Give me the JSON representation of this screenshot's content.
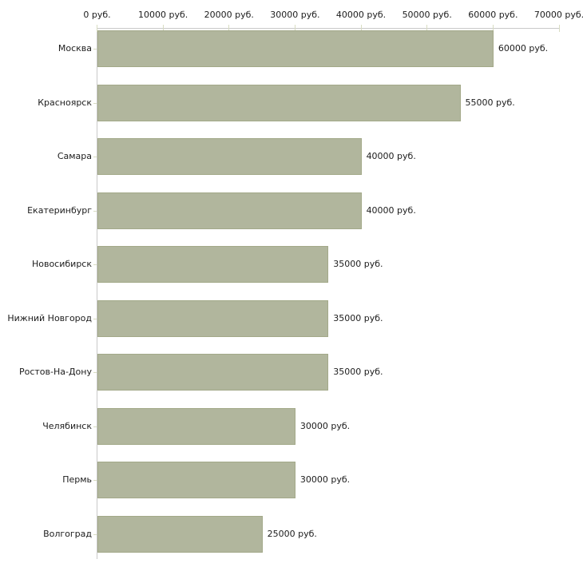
{
  "chart_data": {
    "type": "bar",
    "orientation": "horizontal",
    "title": "",
    "categories": [
      "Москва",
      "Красноярск",
      "Самара",
      "Екатеринбург",
      "Новосибирск",
      "Нижний Новгород",
      "Ростов-На-Дону",
      "Челябинск",
      "Пермь",
      "Волгоград"
    ],
    "values": [
      60000,
      55000,
      40000,
      40000,
      35000,
      35000,
      35000,
      30000,
      30000,
      25000
    ],
    "value_labels": [
      "60000 руб.",
      "55000 руб.",
      "40000 руб.",
      "40000 руб.",
      "35000 руб.",
      "35000 руб.",
      "35000 руб.",
      "30000 руб.",
      "30000 руб.",
      "25000 руб."
    ],
    "unit": "руб.",
    "x_axis": {
      "min": 0,
      "max": 70000,
      "tick_step": 10000,
      "ticks": [
        {
          "value": 0,
          "label": "0 руб."
        },
        {
          "value": 10000,
          "label": "10000 руб."
        },
        {
          "value": 20000,
          "label": "20000 руб."
        },
        {
          "value": 30000,
          "label": "30000 руб."
        },
        {
          "value": 40000,
          "label": "40000 руб."
        },
        {
          "value": 50000,
          "label": "50000 руб."
        },
        {
          "value": 60000,
          "label": "60000 руб."
        },
        {
          "value": 70000,
          "label": "70000 руб."
        }
      ],
      "position": "top"
    },
    "legend": "none",
    "grid": "off",
    "colors": {
      "bar": "#b1b69d",
      "bar_border": "#a3a989",
      "axis": "#c9c9c9",
      "tick": "#d8dcc2",
      "text": "#1c1c1c",
      "background": "#ffffff"
    }
  }
}
